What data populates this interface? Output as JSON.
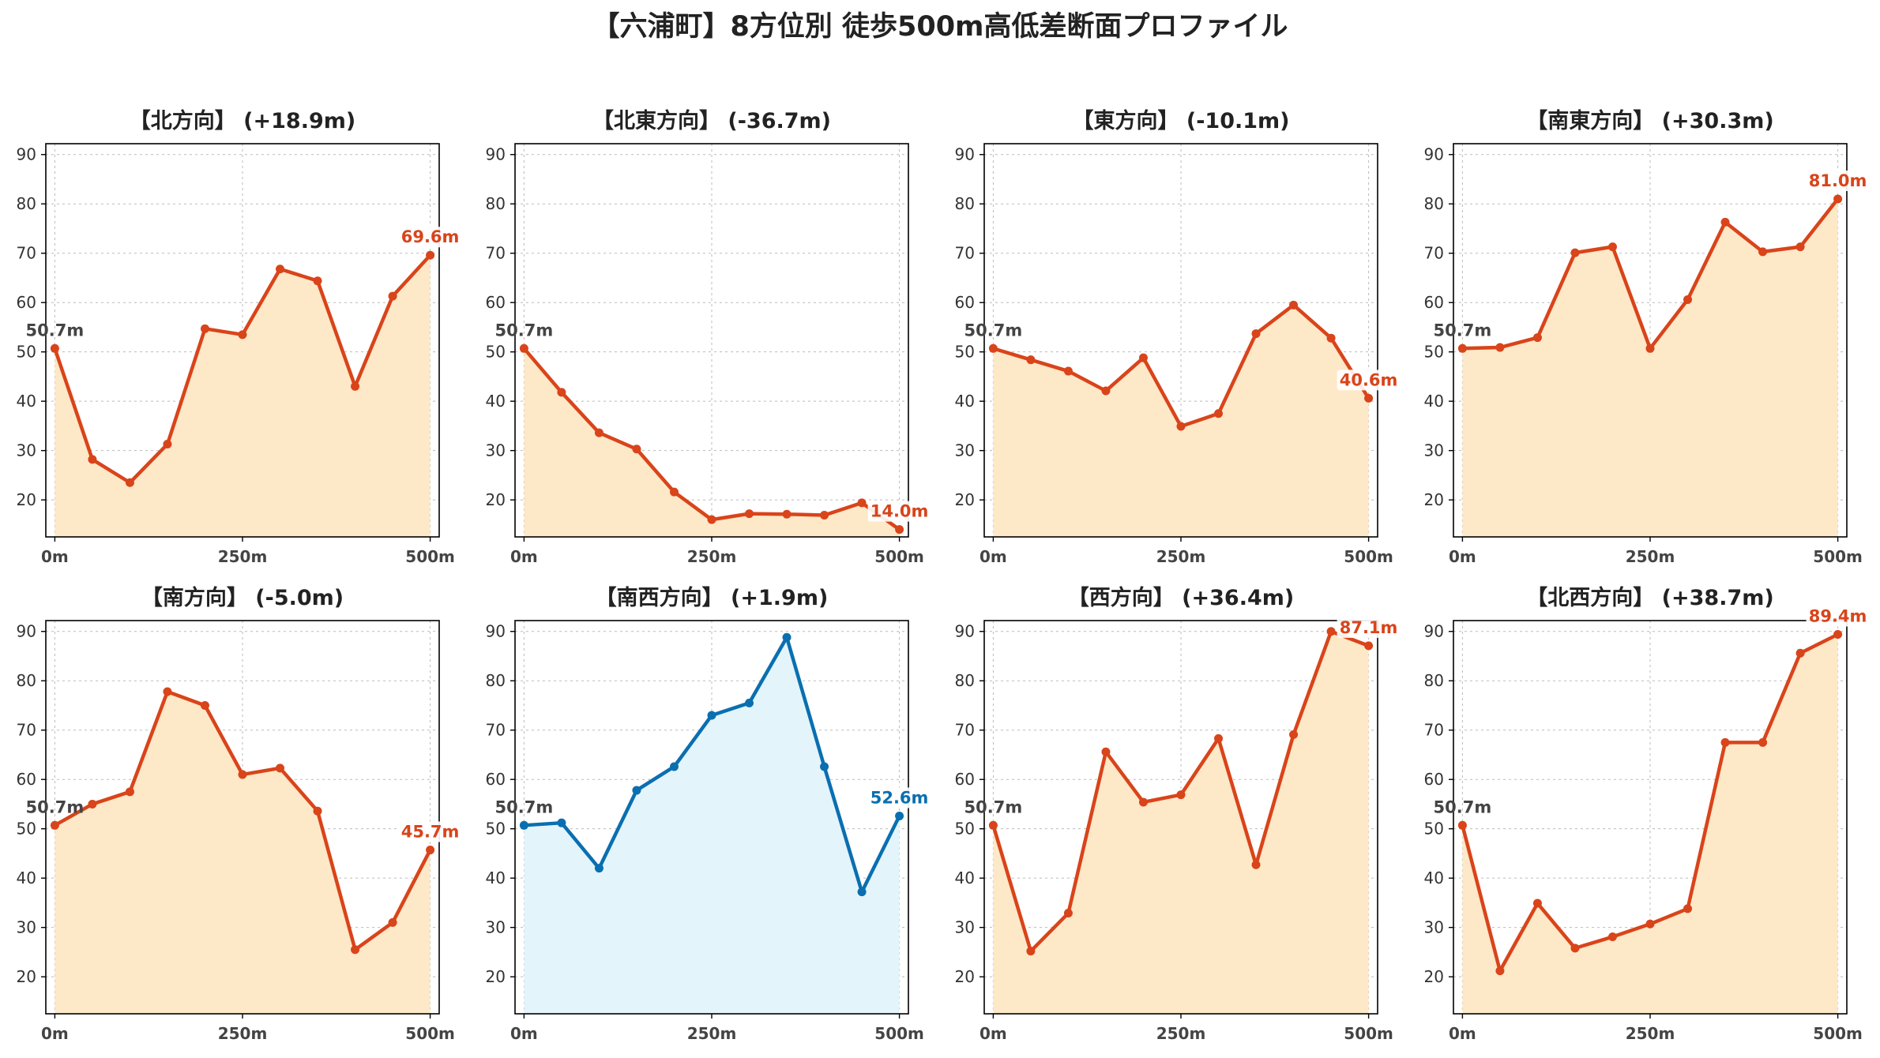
{
  "figure": {
    "title": "【六浦町】8方位別 徒歩500m高低差断面プロファイル"
  },
  "colors": {
    "up_line": "#d9441a",
    "up_fill": "#fde8c8",
    "flat_line": "#0a6fb0",
    "flat_fill": "#e4f4fb",
    "start_label": "#444444",
    "grid": "#bbbbbb"
  },
  "chart_data": [
    {
      "type": "area",
      "title": "【北方向】 (+18.9m)",
      "x": [
        0,
        50,
        100,
        150,
        200,
        250,
        300,
        350,
        400,
        450,
        500
      ],
      "y": [
        50.7,
        28.2,
        23.5,
        31.3,
        54.7,
        53.5,
        66.8,
        64.4,
        43.0,
        61.3,
        69.6
      ],
      "xticks": [
        "0m",
        "250m",
        "500m"
      ],
      "yticks": [
        20,
        30,
        40,
        50,
        60,
        70,
        80,
        90
      ],
      "start_label": "50.7m",
      "end_label": "69.6m",
      "color": "orange",
      "grid": true
    },
    {
      "type": "area",
      "title": "【北東方向】 (-36.7m)",
      "x": [
        0,
        50,
        100,
        150,
        200,
        250,
        300,
        350,
        400,
        450,
        500
      ],
      "y": [
        50.7,
        41.8,
        33.6,
        30.3,
        21.6,
        16.0,
        17.2,
        17.1,
        16.9,
        19.4,
        14.0
      ],
      "xticks": [
        "0m",
        "250m",
        "500m"
      ],
      "yticks": [
        20,
        30,
        40,
        50,
        60,
        70,
        80,
        90
      ],
      "start_label": "50.7m",
      "end_label": "14.0m",
      "color": "orange",
      "grid": true
    },
    {
      "type": "area",
      "title": "【東方向】 (-10.1m)",
      "x": [
        0,
        50,
        100,
        150,
        200,
        250,
        300,
        350,
        400,
        450,
        500
      ],
      "y": [
        50.7,
        48.4,
        46.1,
        42.1,
        48.8,
        34.9,
        37.5,
        53.7,
        59.5,
        52.8,
        40.6
      ],
      "xticks": [
        "0m",
        "250m",
        "500m"
      ],
      "yticks": [
        20,
        30,
        40,
        50,
        60,
        70,
        80,
        90
      ],
      "start_label": "50.7m",
      "end_label": "40.6m",
      "color": "orange",
      "grid": true
    },
    {
      "type": "area",
      "title": "【南東方向】 (+30.3m)",
      "x": [
        0,
        50,
        100,
        150,
        200,
        250,
        300,
        350,
        400,
        450,
        500
      ],
      "y": [
        50.7,
        50.9,
        52.9,
        70.1,
        71.3,
        50.7,
        60.6,
        76.3,
        70.3,
        71.3,
        81.0
      ],
      "xticks": [
        "0m",
        "250m",
        "500m"
      ],
      "yticks": [
        20,
        30,
        40,
        50,
        60,
        70,
        80,
        90
      ],
      "start_label": "50.7m",
      "end_label": "81.0m",
      "color": "orange",
      "grid": true
    },
    {
      "type": "area",
      "title": "【南方向】 (-5.0m)",
      "x": [
        0,
        50,
        100,
        150,
        200,
        250,
        300,
        350,
        400,
        450,
        500
      ],
      "y": [
        50.7,
        55.0,
        57.5,
        77.8,
        75.0,
        61.0,
        62.3,
        53.6,
        25.5,
        31.0,
        45.7
      ],
      "xticks": [
        "0m",
        "250m",
        "500m"
      ],
      "yticks": [
        20,
        30,
        40,
        50,
        60,
        70,
        80,
        90
      ],
      "start_label": "50.7m",
      "end_label": "45.7m",
      "color": "orange",
      "grid": true
    },
    {
      "type": "area",
      "title": "【南西方向】 (+1.9m)",
      "x": [
        0,
        50,
        100,
        150,
        200,
        250,
        300,
        350,
        400,
        450,
        500
      ],
      "y": [
        50.7,
        51.2,
        42.0,
        57.8,
        62.6,
        73.0,
        75.5,
        88.8,
        62.6,
        37.2,
        52.6
      ],
      "xticks": [
        "0m",
        "250m",
        "500m"
      ],
      "yticks": [
        20,
        30,
        40,
        50,
        60,
        70,
        80,
        90
      ],
      "start_label": "50.7m",
      "end_label": "52.6m",
      "color": "blue",
      "grid": true
    },
    {
      "type": "area",
      "title": "【西方向】 (+36.4m)",
      "x": [
        0,
        50,
        100,
        150,
        200,
        250,
        300,
        350,
        400,
        450,
        500
      ],
      "y": [
        50.7,
        25.2,
        32.9,
        65.6,
        55.4,
        56.9,
        68.3,
        42.7,
        69.1,
        90.0,
        87.1
      ],
      "xticks": [
        "0m",
        "250m",
        "500m"
      ],
      "yticks": [
        20,
        30,
        40,
        50,
        60,
        70,
        80,
        90
      ],
      "start_label": "50.7m",
      "end_label": "87.1m",
      "color": "orange",
      "grid": true
    },
    {
      "type": "area",
      "title": "【北西方向】 (+38.7m)",
      "x": [
        0,
        50,
        100,
        150,
        200,
        250,
        300,
        350,
        400,
        450,
        500
      ],
      "y": [
        50.7,
        21.2,
        34.9,
        25.8,
        28.1,
        30.7,
        33.8,
        67.5,
        67.5,
        85.6,
        89.4
      ],
      "xticks": [
        "0m",
        "250m",
        "500m"
      ],
      "yticks": [
        20,
        30,
        40,
        50,
        60,
        70,
        80,
        90
      ],
      "start_label": "50.7m",
      "end_label": "89.4m",
      "color": "orange",
      "grid": true
    }
  ]
}
